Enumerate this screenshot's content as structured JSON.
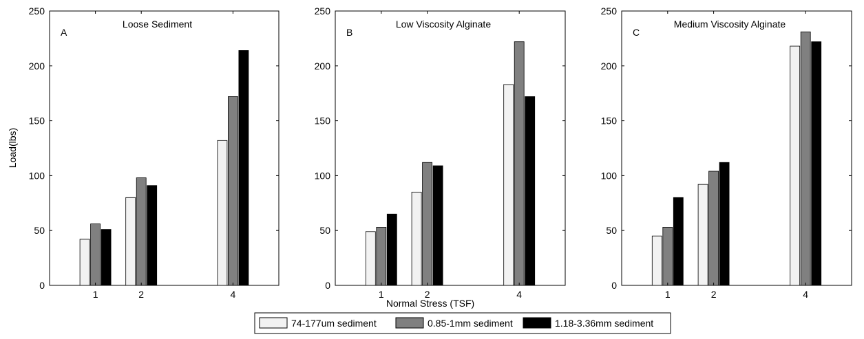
{
  "shared": {
    "ylabel": "Load(lbs)",
    "xlabel": "Normal Stress (TSF)"
  },
  "legend": {
    "placement": "bottom-center",
    "entries": [
      {
        "label": "74-177um sediment",
        "color": "#f2f2f2"
      },
      {
        "label": "0.85-1mm sediment",
        "color": "#808080"
      },
      {
        "label": "1.18-3.36mm sediment",
        "color": "#000000"
      }
    ]
  },
  "chart_data": [
    {
      "type": "bar",
      "panel_letter": "A",
      "title": "Loose Sediment",
      "x": [
        1,
        2,
        4
      ],
      "xlim": [
        0,
        5
      ],
      "ylim": [
        0,
        250
      ],
      "yticks": [
        0,
        50,
        100,
        150,
        200,
        250
      ],
      "series": [
        {
          "name": "74-177um sediment",
          "values": [
            42,
            80,
            132
          ],
          "color": "#f2f2f2"
        },
        {
          "name": "0.85-1mm sediment",
          "values": [
            56,
            98,
            172
          ],
          "color": "#808080"
        },
        {
          "name": "1.18-3.36mm sediment",
          "values": [
            51,
            91,
            214
          ],
          "color": "#000000"
        }
      ]
    },
    {
      "type": "bar",
      "panel_letter": "B",
      "title": "Low Viscosity Alginate",
      "x": [
        1,
        2,
        4
      ],
      "xlim": [
        0,
        5
      ],
      "ylim": [
        0,
        250
      ],
      "yticks": [
        0,
        50,
        100,
        150,
        200,
        250
      ],
      "series": [
        {
          "name": "74-177um sediment",
          "values": [
            49,
            85,
            183
          ],
          "color": "#f2f2f2"
        },
        {
          "name": "0.85-1mm sediment",
          "values": [
            53,
            112,
            222
          ],
          "color": "#808080"
        },
        {
          "name": "1.18-3.36mm sediment",
          "values": [
            65,
            109,
            172
          ],
          "color": "#000000"
        }
      ]
    },
    {
      "type": "bar",
      "panel_letter": "C",
      "title": "Medium Viscosity Alginate",
      "x": [
        1,
        2,
        4
      ],
      "xlim": [
        0,
        5
      ],
      "ylim": [
        0,
        250
      ],
      "yticks": [
        0,
        50,
        100,
        150,
        200,
        250
      ],
      "series": [
        {
          "name": "74-177um sediment",
          "values": [
            45,
            92,
            218
          ],
          "color": "#f2f2f2"
        },
        {
          "name": "0.85-1mm sediment",
          "values": [
            53,
            104,
            231
          ],
          "color": "#808080"
        },
        {
          "name": "1.18-3.36mm sediment",
          "values": [
            80,
            112,
            222
          ],
          "color": "#000000"
        }
      ]
    }
  ]
}
